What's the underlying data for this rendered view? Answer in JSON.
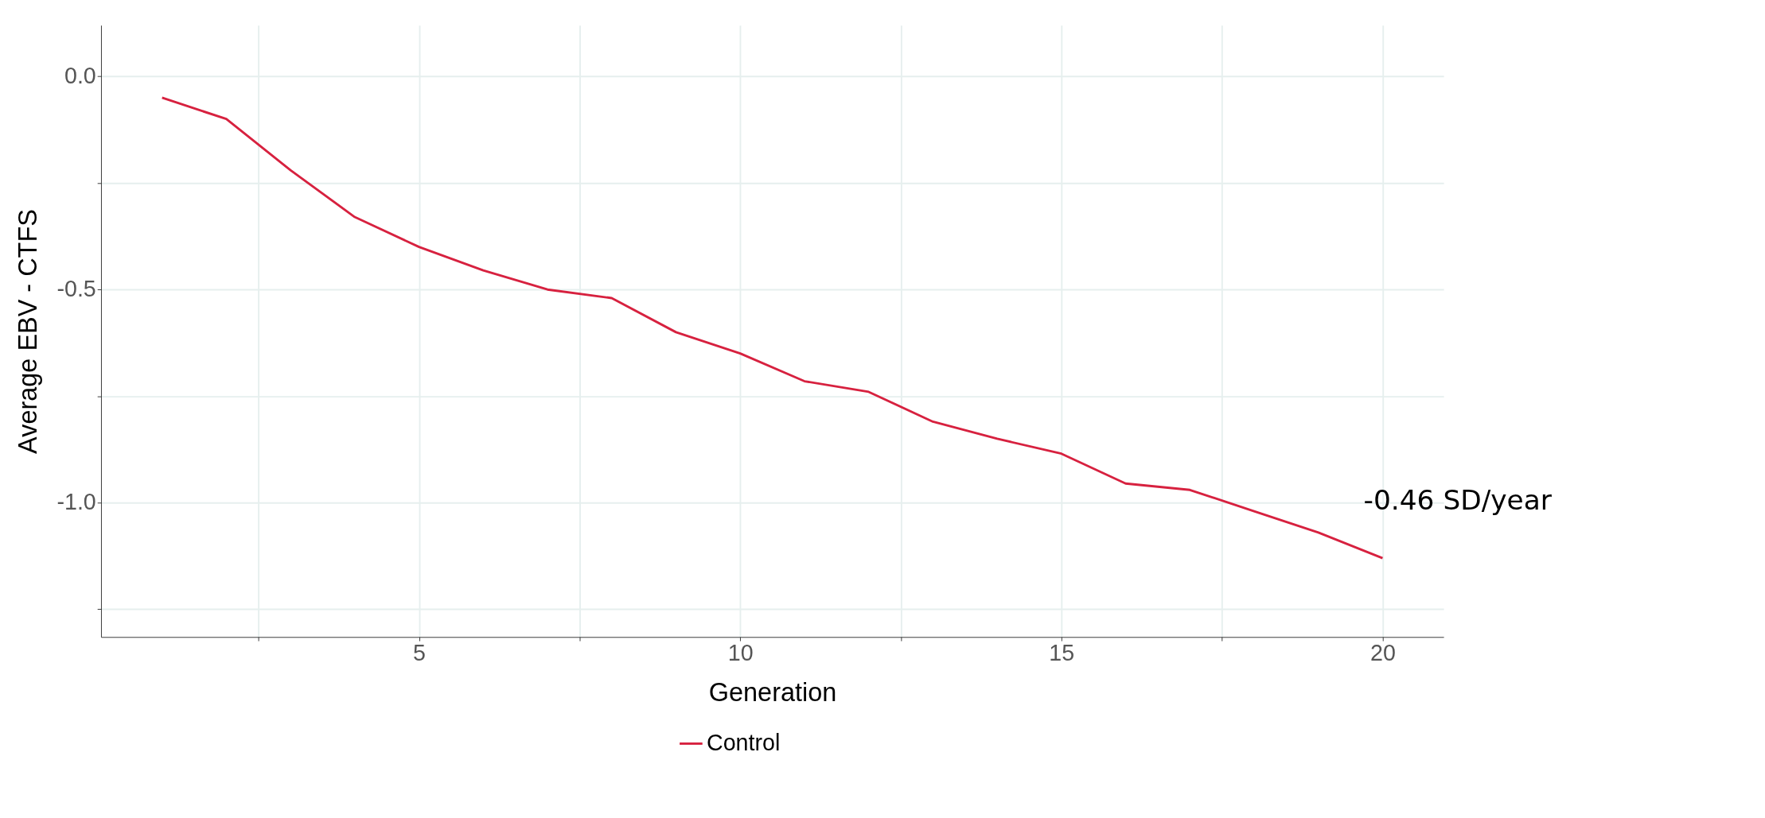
{
  "chart_data": {
    "type": "line",
    "xlabel": "Generation",
    "ylabel": "Average EBV - CTFS",
    "x": [
      1,
      2,
      3,
      4,
      5,
      6,
      7,
      8,
      9,
      10,
      11,
      12,
      13,
      14,
      15,
      16,
      17,
      18,
      19,
      20
    ],
    "series": [
      {
        "name": "Control",
        "color": "#d7213f",
        "values": [
          -0.05,
          -0.1,
          -0.22,
          -0.33,
          -0.4,
          -0.455,
          -0.5,
          -0.52,
          -0.6,
          -0.65,
          -0.715,
          -0.74,
          -0.81,
          -0.85,
          -0.885,
          -0.955,
          -0.97,
          -1.02,
          -1.07,
          -1.13
        ]
      }
    ],
    "xlim": [
      0.05,
      20.95
    ],
    "ylim": [
      -1.315,
      0.12
    ],
    "xticks": [
      {
        "value": 2.5,
        "label": null
      },
      5,
      {
        "value": 7.5,
        "label": null
      },
      10,
      {
        "value": 12.5,
        "label": null
      },
      15,
      {
        "value": 17.5,
        "label": null
      },
      20
    ],
    "yticks": [
      {
        "value": -1.25,
        "label": null
      },
      {
        "value": -1.0,
        "label": "-1.0"
      },
      {
        "value": -0.75,
        "label": null
      },
      -0.5,
      {
        "value": -0.25,
        "label": null
      },
      {
        "value": 0.0,
        "label": "0.0"
      }
    ],
    "annotations": [
      {
        "text": "-0.46 SD/year",
        "x": 20,
        "y": -1.13
      }
    ],
    "grid": true,
    "legend": "bottom",
    "marker": "none",
    "line_style": "solid"
  }
}
